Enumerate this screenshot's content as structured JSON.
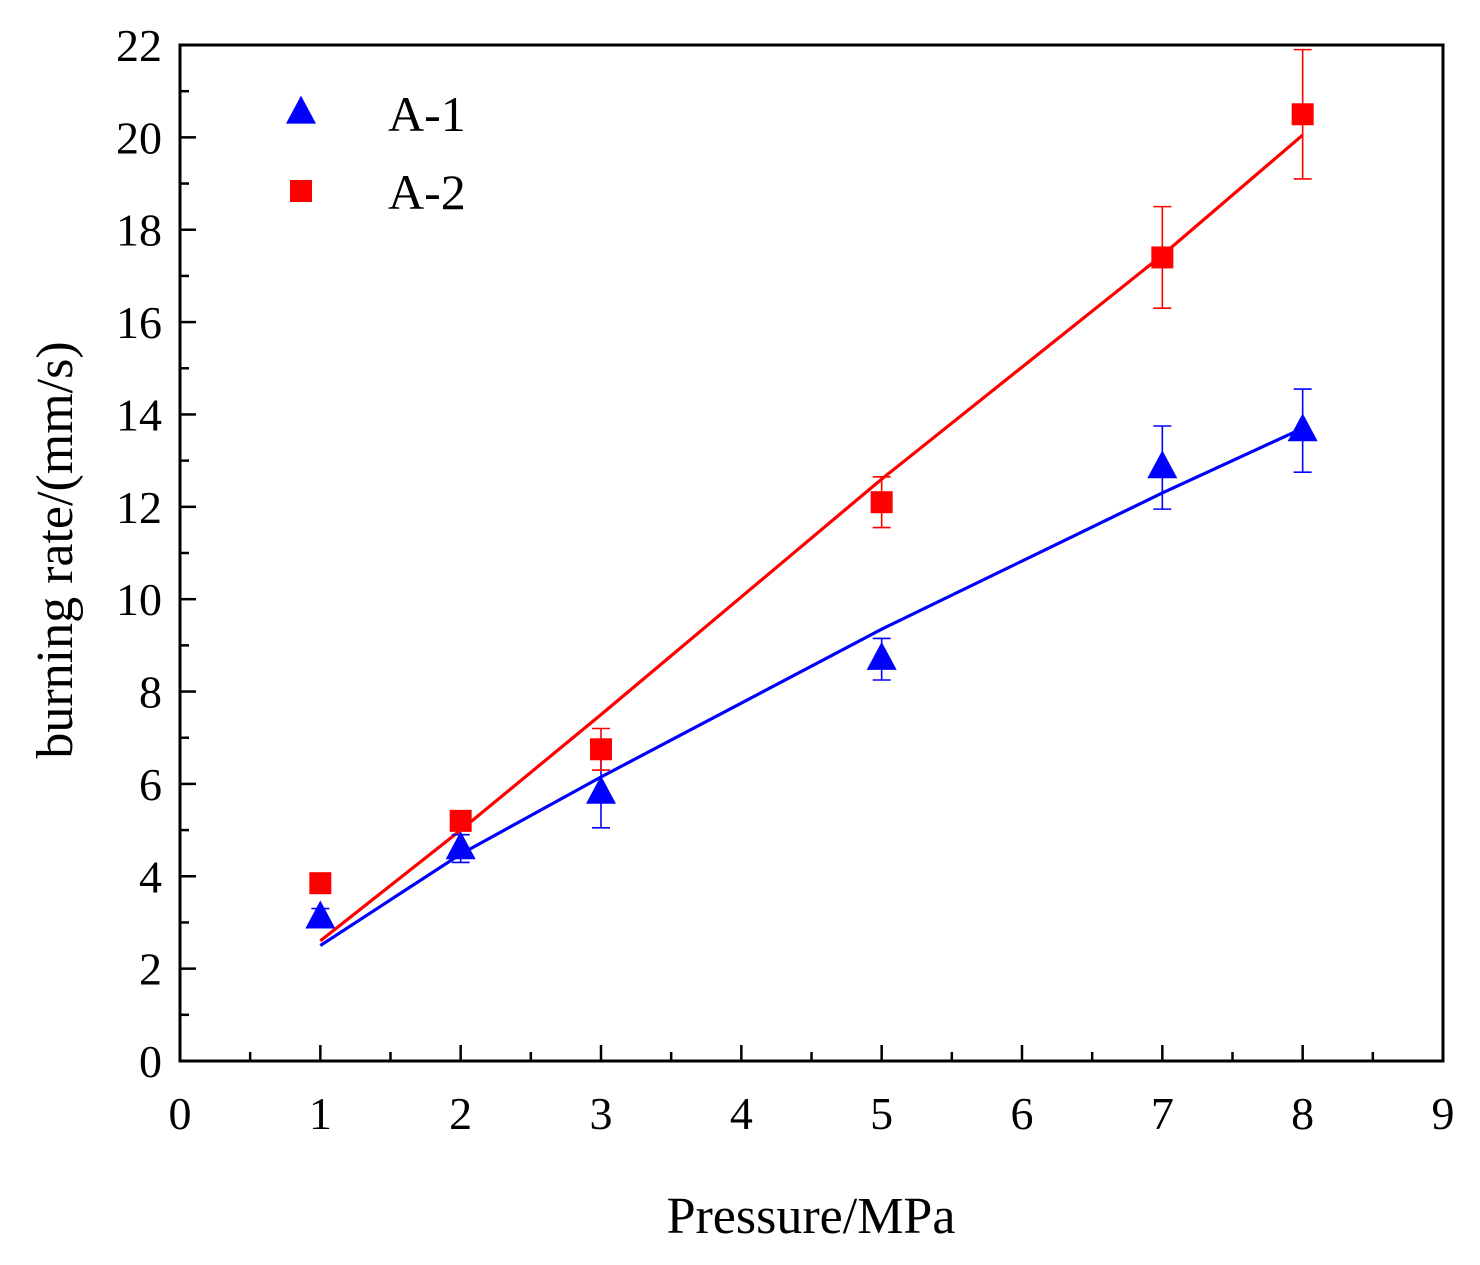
{
  "chart_data": {
    "type": "scatter",
    "title": "",
    "xlabel": "Pressure/MPa",
    "ylabel": "burning rate/(mm/s)",
    "xlim": [
      0,
      9
    ],
    "ylim": [
      0,
      22
    ],
    "xticks": [
      0,
      1,
      2,
      3,
      4,
      5,
      6,
      7,
      8,
      9
    ],
    "yticks": [
      0,
      2,
      4,
      6,
      8,
      10,
      12,
      14,
      16,
      18,
      20,
      22
    ],
    "grid": false,
    "legend_position": "top-left",
    "series": [
      {
        "name": "A-1",
        "marker": "triangle",
        "color": "#0000ff",
        "x": [
          1,
          2,
          3,
          5,
          7,
          8
        ],
        "y": [
          3.1,
          4.6,
          5.8,
          8.7,
          12.85,
          13.65
        ],
        "yerr": [
          0.2,
          0.3,
          0.75,
          0.45,
          0.9,
          0.9
        ],
        "fit": {
          "x": [
            1,
            2,
            3,
            5,
            7,
            8
          ],
          "y": [
            2.5,
            4.48,
            6.15,
            9.35,
            12.3,
            13.7
          ]
        }
      },
      {
        "name": "A-2",
        "marker": "square",
        "color": "#ff0000",
        "x": [
          1,
          2,
          3,
          5,
          7,
          8
        ],
        "y": [
          3.85,
          5.2,
          6.75,
          12.1,
          17.4,
          20.5
        ],
        "yerr": [
          0.0,
          0.2,
          0.45,
          0.55,
          1.1,
          1.4
        ],
        "fit": {
          "x": [
            1,
            2,
            3,
            5,
            7,
            8
          ],
          "y": [
            2.6,
            5.0,
            7.5,
            12.6,
            17.45,
            20.05
          ]
        }
      }
    ]
  }
}
